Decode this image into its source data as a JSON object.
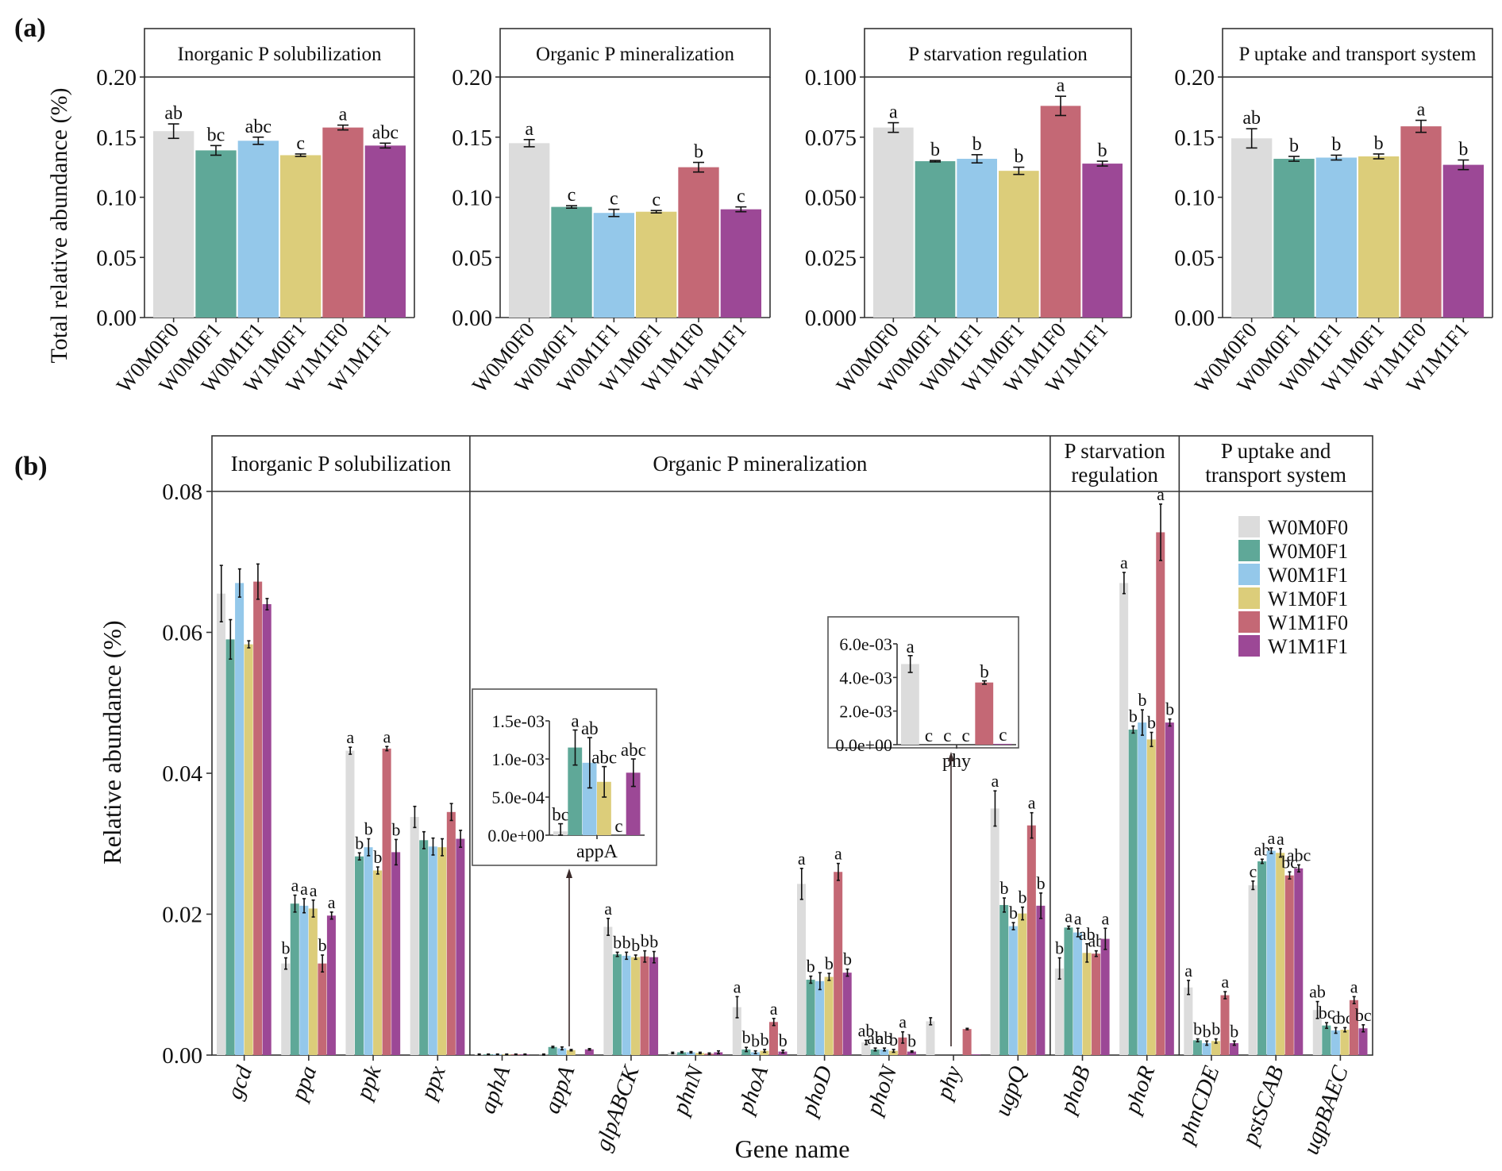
{
  "figure": {
    "panel_a_label": "(a)",
    "panel_b_label": "(b)"
  },
  "colors": {
    "W0M0F0": "#dcdcdc",
    "W0M0F1": "#5fa898",
    "W0M1F1": "#94c8ea",
    "W1M0F1": "#dccd7a",
    "W1M1F0": "#c46875",
    "W1M1F1": "#9c4896"
  },
  "chart_data": [
    {
      "id": "a1",
      "type": "bar",
      "title": "Inorganic P solubilization",
      "ylabel": "Total relative abundance (%)",
      "xlabel": "",
      "categories": [
        "W0M0F0",
        "W0M0F1",
        "W0M1F1",
        "W1M0F1",
        "W1M1F0",
        "W1M1F1"
      ],
      "values": [
        0.155,
        0.139,
        0.147,
        0.135,
        0.158,
        0.143
      ],
      "errors": [
        0.006,
        0.004,
        0.003,
        0.001,
        0.002,
        0.002
      ],
      "letters": [
        "ab",
        "bc",
        "abc",
        "c",
        "a",
        "abc"
      ],
      "ylim": [
        0,
        0.2
      ],
      "yticks": [
        "0.00",
        "0.05",
        "0.10",
        "0.15",
        "0.20"
      ],
      "ytick_values": [
        0,
        0.05,
        0.1,
        0.15,
        0.2
      ]
    },
    {
      "id": "a2",
      "type": "bar",
      "title": "Organic P mineralization",
      "categories": [
        "W0M0F0",
        "W0M0F1",
        "W0M1F1",
        "W1M0F1",
        "W1M1F0",
        "W1M1F1"
      ],
      "values": [
        0.145,
        0.092,
        0.087,
        0.088,
        0.125,
        0.09
      ],
      "errors": [
        0.003,
        0.001,
        0.003,
        0.001,
        0.004,
        0.002
      ],
      "letters": [
        "a",
        "c",
        "c",
        "c",
        "b",
        "c"
      ],
      "ylim": [
        0,
        0.2
      ],
      "yticks": [
        "0.00",
        "0.05",
        "0.10",
        "0.15",
        "0.20"
      ],
      "ytick_values": [
        0,
        0.05,
        0.1,
        0.15,
        0.2
      ]
    },
    {
      "id": "a3",
      "type": "bar",
      "title": "P starvation regulation",
      "categories": [
        "W0M0F0",
        "W0M0F1",
        "W0M1F1",
        "W1M0F1",
        "W1M1F0",
        "W1M1F1"
      ],
      "values": [
        0.079,
        0.065,
        0.066,
        0.061,
        0.088,
        0.064
      ],
      "errors": [
        0.002,
        0.0003,
        0.0017,
        0.0015,
        0.004,
        0.001
      ],
      "letters": [
        "a",
        "b",
        "b",
        "b",
        "a",
        "b"
      ],
      "ylim": [
        0,
        0.1
      ],
      "yticks": [
        "0.000",
        "0.025",
        "0.050",
        "0.075",
        "0.100"
      ],
      "ytick_values": [
        0,
        0.025,
        0.05,
        0.075,
        0.1
      ]
    },
    {
      "id": "a4",
      "type": "bar",
      "title": "P uptake and transport system",
      "categories": [
        "W0M0F0",
        "W0M0F1",
        "W0M1F1",
        "W1M0F1",
        "W1M1F0",
        "W1M1F1"
      ],
      "values": [
        0.149,
        0.132,
        0.133,
        0.134,
        0.159,
        0.127
      ],
      "errors": [
        0.008,
        0.002,
        0.002,
        0.002,
        0.005,
        0.004
      ],
      "letters": [
        "ab",
        "b",
        "b",
        "b",
        "a",
        "b"
      ],
      "ylim": [
        0,
        0.2
      ],
      "yticks": [
        "0.00",
        "0.05",
        "0.10",
        "0.15",
        "0.20"
      ],
      "ytick_values": [
        0,
        0.05,
        0.1,
        0.15,
        0.2
      ]
    },
    {
      "id": "b",
      "type": "bar",
      "title": "",
      "xlabel": "Gene name",
      "ylabel": "Relative abundance (%)",
      "ylim": [
        0,
        0.08
      ],
      "yticks": [
        "0.00",
        "0.02",
        "0.04",
        "0.06",
        "0.08"
      ],
      "ytick_values": [
        0,
        0.02,
        0.04,
        0.06,
        0.08
      ],
      "groups": [
        {
          "label": "Inorganic P solubilization",
          "genes": 4
        },
        {
          "label": "Organic P mineralization",
          "genes": 9
        },
        {
          "label": "P starvation\nregulation",
          "genes": 2
        },
        {
          "label": "P uptake and\ntransport system",
          "genes": 3
        }
      ],
      "series_names": [
        "W0M0F0",
        "W0M0F1",
        "W0M1F1",
        "W1M0F1",
        "W1M1F0",
        "W1M1F1"
      ],
      "categories": [
        "gcd",
        "ppa",
        "ppk",
        "ppx",
        "aphA",
        "appA",
        "glpABCK",
        "phnN",
        "phoA",
        "phoD",
        "phoN",
        "phy",
        "ugpQ",
        "phoB",
        "phoR",
        "phnCDE",
        "pstSCAB",
        "ugpBAEC"
      ],
      "values": [
        [
          0.0655,
          0.059,
          0.067,
          0.0583,
          0.0672,
          0.064
        ],
        [
          0.013,
          0.0215,
          0.0212,
          0.0208,
          0.013,
          0.0198
        ],
        [
          0.0432,
          0.0282,
          0.0295,
          0.0262,
          0.0435,
          0.0288
        ],
        [
          0.0338,
          0.0305,
          0.0296,
          0.0295,
          0.0345,
          0.0307
        ],
        [
          0.0001,
          0.0001,
          0.0001,
          0.0001,
          0.0001,
          0.0001
        ],
        [
          5e-05,
          0.00115,
          0.00095,
          0.0007,
          0.0,
          0.00082
        ],
        [
          0.0182,
          0.0143,
          0.0141,
          0.0139,
          0.014,
          0.0139
        ],
        [
          0.0003,
          0.0004,
          0.0004,
          0.0003,
          0.0002,
          0.0004
        ],
        [
          0.0068,
          0.0008,
          0.0004,
          0.0006,
          0.0047,
          0.0005
        ],
        [
          0.0243,
          0.0107,
          0.0105,
          0.0111,
          0.026,
          0.0117
        ],
        [
          0.0018,
          0.0008,
          0.0008,
          0.0006,
          0.0025,
          0.0005
        ],
        [
          0.0048,
          0.0,
          0.0,
          0.0,
          0.0037,
          0.0001
        ],
        [
          0.035,
          0.0213,
          0.0183,
          0.0201,
          0.0326,
          0.0212
        ],
        [
          0.0123,
          0.0181,
          0.0174,
          0.0145,
          0.0144,
          0.0165
        ],
        [
          0.067,
          0.0462,
          0.0472,
          0.0448,
          0.0742,
          0.0472
        ],
        [
          0.0096,
          0.0021,
          0.0017,
          0.002,
          0.0085,
          0.0017
        ],
        [
          0.0241,
          0.0275,
          0.029,
          0.0287,
          0.0255,
          0.0265
        ],
        [
          0.0064,
          0.0042,
          0.0035,
          0.0036,
          0.0078,
          0.0038
        ]
      ],
      "errors": [
        [
          0.004,
          0.0028,
          0.002,
          0.0005,
          0.0025,
          0.0008
        ],
        [
          0.0008,
          0.0012,
          0.001,
          0.0012,
          0.0012,
          0.0005
        ],
        [
          0.0005,
          0.0005,
          0.0012,
          0.0005,
          0.0003,
          0.0018
        ],
        [
          0.0015,
          0.0012,
          0.0012,
          0.0012,
          0.0012,
          0.0012
        ],
        [
          5e-05,
          5e-05,
          5e-05,
          5e-05,
          5e-05,
          5e-05
        ],
        [
          0.0001,
          0.0001,
          0.0002,
          0.0001,
          0.0,
          0.0001
        ],
        [
          0.0012,
          0.0003,
          0.0005,
          0.0003,
          0.0008,
          0.0008
        ],
        [
          0.0001,
          0.0001,
          0.0001,
          0.0001,
          0.0001,
          0.0002
        ],
        [
          0.0015,
          0.0003,
          0.0002,
          0.0002,
          0.0005,
          0.0002
        ],
        [
          0.0022,
          0.0005,
          0.0012,
          0.0005,
          0.0012,
          0.0005
        ],
        [
          0.0003,
          0.0002,
          0.0002,
          0.0002,
          0.0008,
          0.0001
        ],
        [
          0.0005,
          0.0,
          0.0,
          0.0,
          0.0001,
          0.0
        ],
        [
          0.0025,
          0.001,
          0.0005,
          0.0009,
          0.0018,
          0.0018
        ],
        [
          0.0015,
          0.0002,
          0.0006,
          0.0013,
          0.0004,
          0.0015
        ],
        [
          0.0015,
          0.0005,
          0.0018,
          0.001,
          0.004,
          0.0005
        ],
        [
          0.001,
          0.0002,
          0.0003,
          0.0003,
          0.0005,
          0.0003
        ],
        [
          0.0006,
          0.0003,
          0.0004,
          0.0006,
          0.0005,
          0.0005
        ],
        [
          0.0012,
          0.0004,
          0.0004,
          0.0003,
          0.0005,
          0.0005
        ]
      ],
      "letters": [
        [
          "",
          "",
          "",
          "",
          "",
          ""
        ],
        [
          "b",
          "a",
          "a",
          "a",
          "b",
          "a"
        ],
        [
          "a",
          "b",
          "b",
          "b",
          "a",
          "b"
        ],
        [
          "",
          "",
          "",
          "",
          "",
          ""
        ],
        [
          "",
          "",
          "",
          "",
          "",
          ""
        ],
        [
          "",
          "",
          "",
          "",
          "",
          ""
        ],
        [
          "a",
          "b",
          "b",
          "b",
          "b",
          "b"
        ],
        [
          "",
          "",
          "",
          "",
          "",
          ""
        ],
        [
          "a",
          "b",
          "b",
          "b",
          "a",
          "b"
        ],
        [
          "a",
          "b",
          "",
          "b",
          "a",
          "b"
        ],
        [
          "ab",
          "ab",
          "ab",
          "b",
          "a",
          "b"
        ],
        [
          "",
          "",
          "",
          "",
          "",
          ""
        ],
        [
          "a",
          "b",
          "b",
          "b",
          "a",
          "b"
        ],
        [
          "b",
          "a",
          "a",
          "ab",
          "ab",
          "a"
        ],
        [
          "a",
          "b",
          "b",
          "b",
          "a",
          "b"
        ],
        [
          "a",
          "b",
          "b",
          "b",
          "a",
          "b"
        ],
        [
          "c",
          "ab",
          "a",
          "a",
          "bc",
          "abc"
        ],
        [
          "ab",
          "bc",
          "c",
          "bc",
          "a",
          "bc"
        ]
      ],
      "legend": {
        "placement": "top-right",
        "entries": [
          "W0M0F0",
          "W0M0F1",
          "W0M1F1",
          "W1M0F1",
          "W1M1F0",
          "W1M1F1"
        ]
      },
      "insets": [
        {
          "gene": "appA",
          "xlabel": "appA",
          "ylim": [
            0,
            0.0015
          ],
          "yticks": [
            "0.0e+00",
            "5.0e-04",
            "1.0e-03",
            "1.5e-03"
          ],
          "ytick_values": [
            0,
            0.0005,
            0.001,
            0.0015
          ],
          "values": [
            5e-05,
            0.00115,
            0.00095,
            0.0007,
            0.0,
            0.00082
          ],
          "errors": [
            0.0001,
            0.00023,
            0.00033,
            0.0002,
            0.0,
            0.00018
          ],
          "letters": [
            "bc",
            "a",
            "ab",
            "abc",
            "c",
            "abc"
          ]
        },
        {
          "gene": "phy",
          "xlabel": "phy",
          "ylim": [
            0,
            0.006
          ],
          "yticks": [
            "0.0e+00",
            "2.0e-03",
            "4.0e-03",
            "6.0e-03"
          ],
          "ytick_values": [
            0,
            0.002,
            0.004,
            0.006
          ],
          "values": [
            0.0048,
            0.0,
            0.0,
            0.0,
            0.0037,
            5e-05
          ],
          "errors": [
            0.0005,
            0.0,
            0.0,
            0.0,
            0.0001,
            0.0
          ],
          "letters": [
            "a",
            "c",
            "c",
            "c",
            "b",
            "c"
          ]
        }
      ]
    }
  ]
}
